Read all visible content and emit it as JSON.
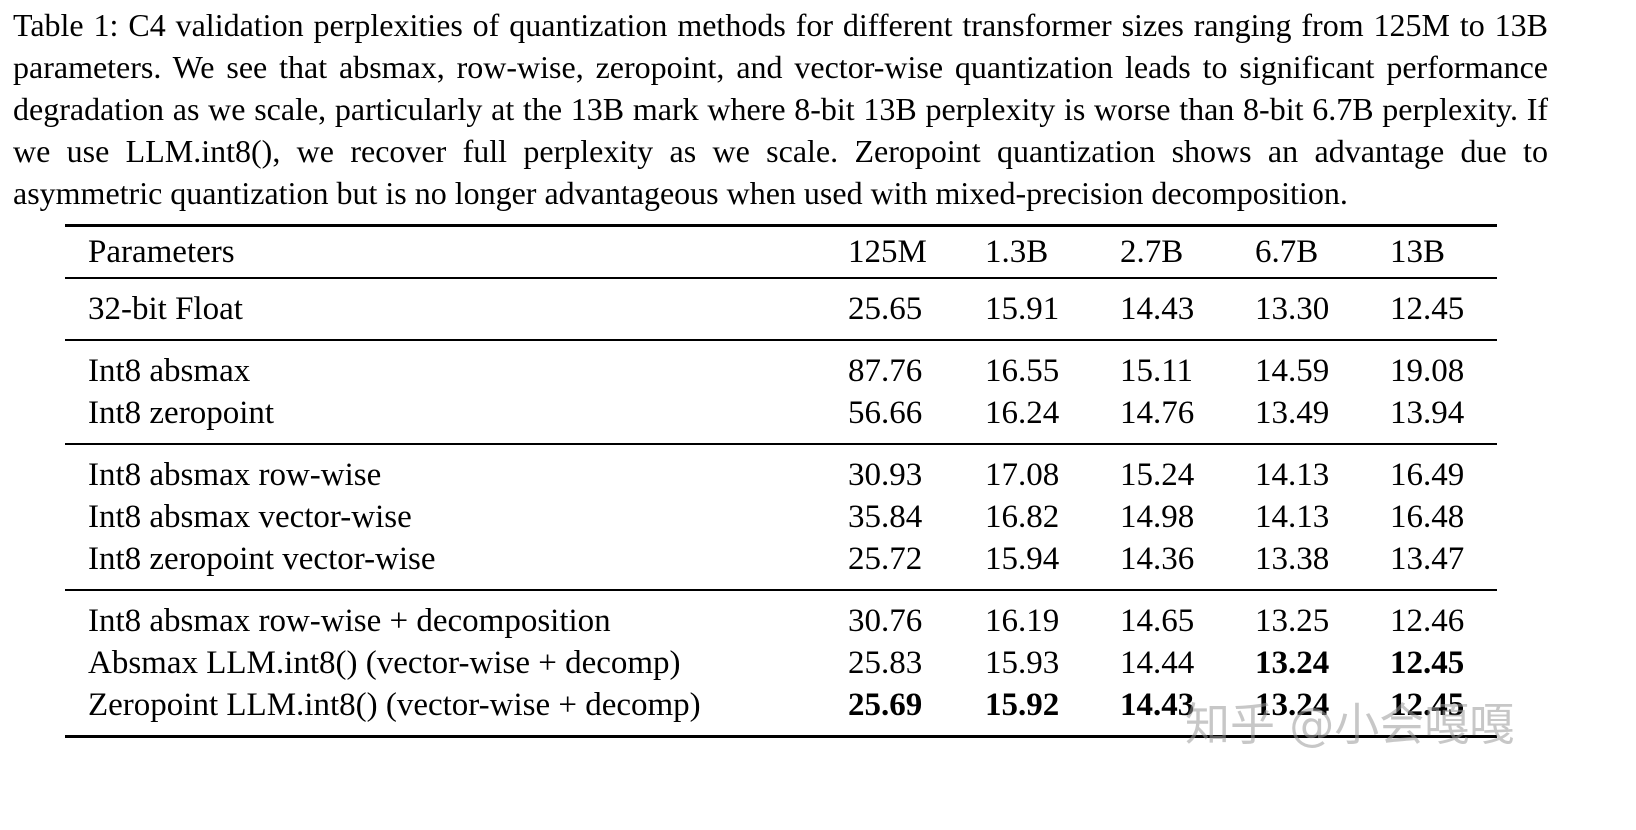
{
  "caption": {
    "label": "Table 1: ",
    "text": "C4 validation perplexities of quantization methods for different transformer sizes ranging from 125M to 13B parameters. We see that absmax, row-wise, zeropoint, and vector-wise quantization leads to significant performance degradation as we scale, particularly at the 13B mark where 8-bit 13B perplexity is worse than 8-bit 6.7B perplexity. If we use LLM.int8(), we recover full perplexity as we scale. Zeropoint quantization shows an advantage due to asymmetric quantization but is no longer advantageous when used with mixed-precision decomposition."
  },
  "table": {
    "headers": [
      "Parameters",
      "125M",
      "1.3B",
      "2.7B",
      "6.7B",
      "13B"
    ],
    "groups": [
      {
        "rows": [
          {
            "label": "32-bit Float",
            "values": [
              "25.65",
              "15.91",
              "14.43",
              "13.30",
              "12.45"
            ],
            "bold_values": []
          }
        ]
      },
      {
        "rows": [
          {
            "label": "Int8 absmax",
            "values": [
              "87.76",
              "16.55",
              "15.11",
              "14.59",
              "19.08"
            ],
            "bold_values": []
          },
          {
            "label": "Int8 zeropoint",
            "values": [
              "56.66",
              "16.24",
              "14.76",
              "13.49",
              "13.94"
            ],
            "bold_values": []
          }
        ]
      },
      {
        "rows": [
          {
            "label": "Int8 absmax row-wise",
            "values": [
              "30.93",
              "17.08",
              "15.24",
              "14.13",
              "16.49"
            ],
            "bold_values": []
          },
          {
            "label": "Int8 absmax vector-wise",
            "values": [
              "35.84",
              "16.82",
              "14.98",
              "14.13",
              "16.48"
            ],
            "bold_values": []
          },
          {
            "label": "Int8 zeropoint vector-wise",
            "values": [
              "25.72",
              "15.94",
              "14.36",
              "13.38",
              "13.47"
            ],
            "bold_values": []
          }
        ]
      },
      {
        "rows": [
          {
            "label": "Int8 absmax row-wise + decomposition",
            "values": [
              "30.76",
              "16.19",
              "14.65",
              "13.25",
              "12.46"
            ],
            "bold_values": []
          },
          {
            "label": "Absmax LLM.int8() (vector-wise + decomp)",
            "values": [
              "25.83",
              "15.93",
              "14.44",
              "13.24",
              "12.45"
            ],
            "bold_values": [
              3,
              4
            ]
          },
          {
            "label": "Zeropoint LLM.int8() (vector-wise + decomp)",
            "values": [
              "25.69",
              "15.92",
              "14.43",
              "13.24",
              "12.45"
            ],
            "bold_values": [
              0,
              1,
              2,
              3,
              4
            ]
          }
        ]
      }
    ]
  },
  "watermark": {
    "text": "知乎 @小会嘎嘎"
  }
}
